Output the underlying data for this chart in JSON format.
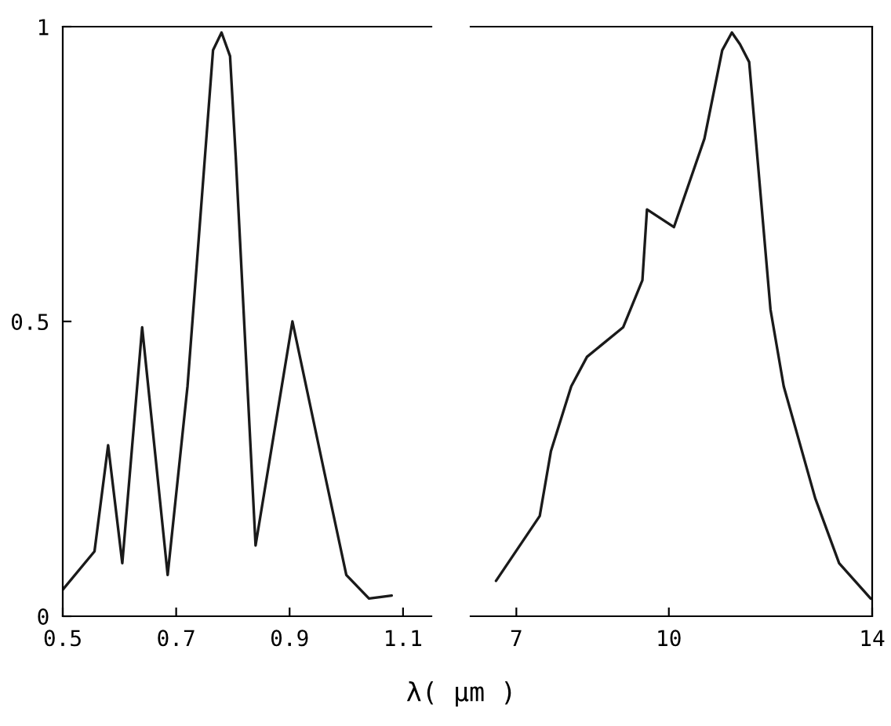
{
  "chart_data": [
    {
      "type": "line",
      "xlabel": "λ( μm )",
      "xlim": [
        0.5,
        1.15
      ],
      "xticks": [
        0.5,
        0.7,
        0.9,
        1.1
      ],
      "ylim": [
        0,
        1
      ],
      "yticks": [
        0,
        0.5,
        1
      ],
      "grid": false,
      "legend": false,
      "series": [
        {
          "color": "#1a1a1a",
          "x": [
            0.5,
            0.556,
            0.58,
            0.605,
            0.64,
            0.685,
            0.72,
            0.765,
            0.78,
            0.795,
            0.805,
            0.84,
            0.905,
            0.96,
            1.0,
            1.04,
            1.08
          ],
          "values": [
            0.045,
            0.11,
            0.29,
            0.09,
            0.49,
            0.07,
            0.39,
            0.96,
            0.99,
            0.95,
            0.78,
            0.12,
            0.5,
            0.25,
            0.07,
            0.03,
            0.035
          ]
        }
      ]
    },
    {
      "type": "line",
      "xlim": [
        6.1,
        14
      ],
      "xticks": [
        7,
        10,
        14
      ],
      "ylim": [
        0,
        1
      ],
      "tick_labels": "x",
      "grid": false,
      "legend": false,
      "series": [
        {
          "color": "#1a1a1a",
          "x": [
            6.6,
            7.46,
            7.68,
            8.08,
            8.39,
            9.1,
            9.48,
            9.57,
            10.1,
            10.7,
            11.05,
            11.24,
            11.4,
            11.58,
            12.0,
            12.26,
            12.88,
            13.35,
            13.97
          ],
          "values": [
            0.06,
            0.17,
            0.28,
            0.39,
            0.44,
            0.49,
            0.57,
            0.69,
            0.66,
            0.81,
            0.96,
            0.99,
            0.97,
            0.94,
            0.52,
            0.39,
            0.2,
            0.09,
            0.03
          ]
        }
      ]
    }
  ]
}
